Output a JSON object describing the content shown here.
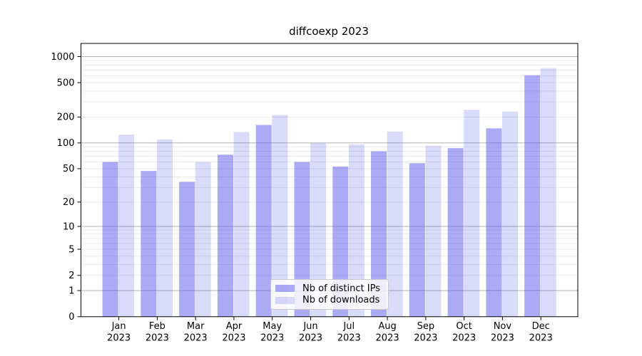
{
  "chart_data": {
    "type": "bar",
    "title": "diffcoexp 2023",
    "categories": [
      "Jan 2023",
      "Feb 2023",
      "Mar 2023",
      "Apr 2023",
      "May 2023",
      "Jun 2023",
      "Jul 2023",
      "Aug 2023",
      "Sep 2023",
      "Oct 2023",
      "Nov 2023",
      "Dec 2023"
    ],
    "series": [
      {
        "name": "Nb of distinct IPs",
        "color": "rgba(85,85,235,0.5)",
        "values": [
          60,
          47,
          35,
          73,
          162,
          60,
          53,
          80,
          58,
          87,
          148,
          610
        ]
      },
      {
        "name": "Nb of downloads",
        "color": "rgba(85,85,235,0.22)",
        "values": [
          125,
          110,
          60,
          134,
          211,
          100,
          96,
          136,
          93,
          242,
          232,
          736
        ]
      }
    ],
    "xlabel": "",
    "ylabel": "",
    "yscale": "log1p",
    "ylim": [
      0,
      1400
    ],
    "yticks": [
      0,
      1,
      2,
      5,
      10,
      20,
      50,
      100,
      200,
      500,
      1000
    ],
    "major_gridlines": [
      1,
      10,
      100,
      1000
    ],
    "minor_gridlines": [
      2,
      3,
      4,
      5,
      6,
      7,
      8,
      9,
      20,
      30,
      40,
      50,
      60,
      70,
      80,
      90,
      200,
      300,
      400,
      500,
      600,
      700,
      800,
      900
    ],
    "grid": "horizontal, on",
    "legend_position": "inside lower-center",
    "colors": {
      "bar_base": "#5555eb",
      "major_grid": "#b0b0b0",
      "minor_grid": "#e9e9e9",
      "axis": "#000000",
      "background": "#ffffff"
    }
  }
}
